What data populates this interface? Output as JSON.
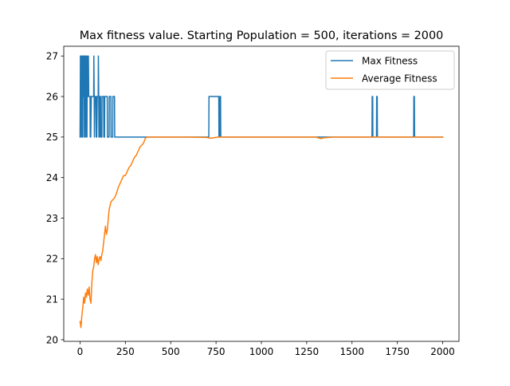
{
  "chart_data": {
    "type": "line",
    "title": "Max fitness value. Starting Population = 500, iterations = 2000",
    "xlabel": "",
    "ylabel": "",
    "xlim": [
      -90,
      2090
    ],
    "ylim": [
      19.96,
      27.24
    ],
    "xticks": [
      0,
      250,
      500,
      750,
      1000,
      1250,
      1500,
      1750,
      2000
    ],
    "yticks": [
      20,
      21,
      22,
      23,
      24,
      25,
      26,
      27
    ],
    "grid": false,
    "legend_position": "top-right",
    "series": [
      {
        "name": "Max Fitness",
        "color": "#1f77b4",
        "x": [
          0,
          2,
          3,
          6,
          7,
          9,
          10,
          12,
          13,
          15,
          16,
          18,
          19,
          21,
          22,
          24,
          25,
          27,
          28,
          31,
          32,
          34,
          35,
          38,
          39,
          41,
          42,
          45,
          46,
          48,
          49,
          55,
          56,
          58,
          59,
          62,
          63,
          75,
          76,
          78,
          79,
          82,
          83,
          88,
          89,
          91,
          92,
          95,
          96,
          100,
          101,
          103,
          104,
          106,
          107,
          110,
          111,
          113,
          114,
          120,
          121,
          130,
          131,
          135,
          136,
          150,
          151,
          160,
          161,
          170,
          171,
          180,
          181,
          190,
          191,
          200,
          201,
          710,
          711,
          765,
          766,
          770,
          771,
          775,
          776,
          780,
          781,
          1610,
          1611,
          1614,
          1615,
          1635,
          1636,
          1639,
          1640,
          1840,
          1841,
          1844,
          1845,
          2000
        ],
        "y": [
          25,
          27,
          25,
          27,
          26,
          27,
          25,
          26,
          27,
          25,
          27,
          26,
          27,
          26,
          27,
          25,
          27,
          25,
          27,
          26,
          27,
          25,
          27,
          25,
          26,
          27,
          26,
          26,
          27,
          26,
          26,
          26,
          25,
          26,
          25,
          26,
          26,
          26,
          27,
          26,
          25,
          26,
          26,
          26,
          25,
          26,
          25,
          26,
          26,
          26,
          27,
          26,
          25,
          26,
          25,
          26,
          26,
          26,
          25,
          25,
          26,
          26,
          25,
          25,
          26,
          26,
          25,
          25,
          26,
          26,
          25,
          25,
          26,
          26,
          25,
          25,
          25,
          25,
          26,
          26,
          25,
          25,
          26,
          26,
          25,
          25,
          25,
          25,
          26,
          26,
          25,
          25,
          26,
          26,
          25,
          25,
          26,
          26,
          25,
          25
        ]
      },
      {
        "name": "Average Fitness",
        "color": "#ff7f0e",
        "x": [
          0,
          5,
          10,
          15,
          20,
          25,
          30,
          35,
          40,
          45,
          50,
          55,
          60,
          65,
          70,
          75,
          80,
          85,
          90,
          95,
          100,
          105,
          110,
          115,
          120,
          125,
          130,
          135,
          140,
          145,
          150,
          160,
          170,
          180,
          190,
          200,
          210,
          220,
          230,
          240,
          250,
          260,
          270,
          280,
          290,
          300,
          310,
          320,
          330,
          340,
          350,
          360,
          370,
          400,
          500,
          600,
          700,
          720,
          760,
          800,
          900,
          1000,
          1100,
          1200,
          1300,
          1330,
          1340,
          1400,
          1500,
          1600,
          1700,
          1800,
          1900,
          2000
        ],
        "y": [
          20.45,
          20.3,
          20.6,
          20.8,
          21.05,
          20.9,
          21.15,
          21.05,
          21.25,
          21.1,
          21.3,
          21.0,
          20.9,
          21.4,
          21.7,
          21.8,
          22.0,
          22.1,
          21.9,
          22.05,
          21.85,
          22.0,
          22.05,
          21.95,
          22.1,
          22.2,
          22.4,
          22.6,
          22.8,
          22.6,
          22.7,
          23.2,
          23.4,
          23.45,
          23.5,
          23.6,
          23.75,
          23.85,
          23.95,
          24.05,
          24.05,
          24.15,
          24.25,
          24.3,
          24.4,
          24.5,
          24.55,
          24.65,
          24.75,
          24.8,
          24.85,
          24.97,
          25.0,
          25.0,
          25.0,
          25.0,
          24.99,
          24.97,
          25.0,
          25.0,
          25.0,
          25.0,
          25.0,
          25.0,
          25.0,
          24.96,
          24.98,
          25.0,
          25.0,
          25.0,
          25.0,
          25.0,
          25.0,
          25.0
        ]
      }
    ]
  }
}
